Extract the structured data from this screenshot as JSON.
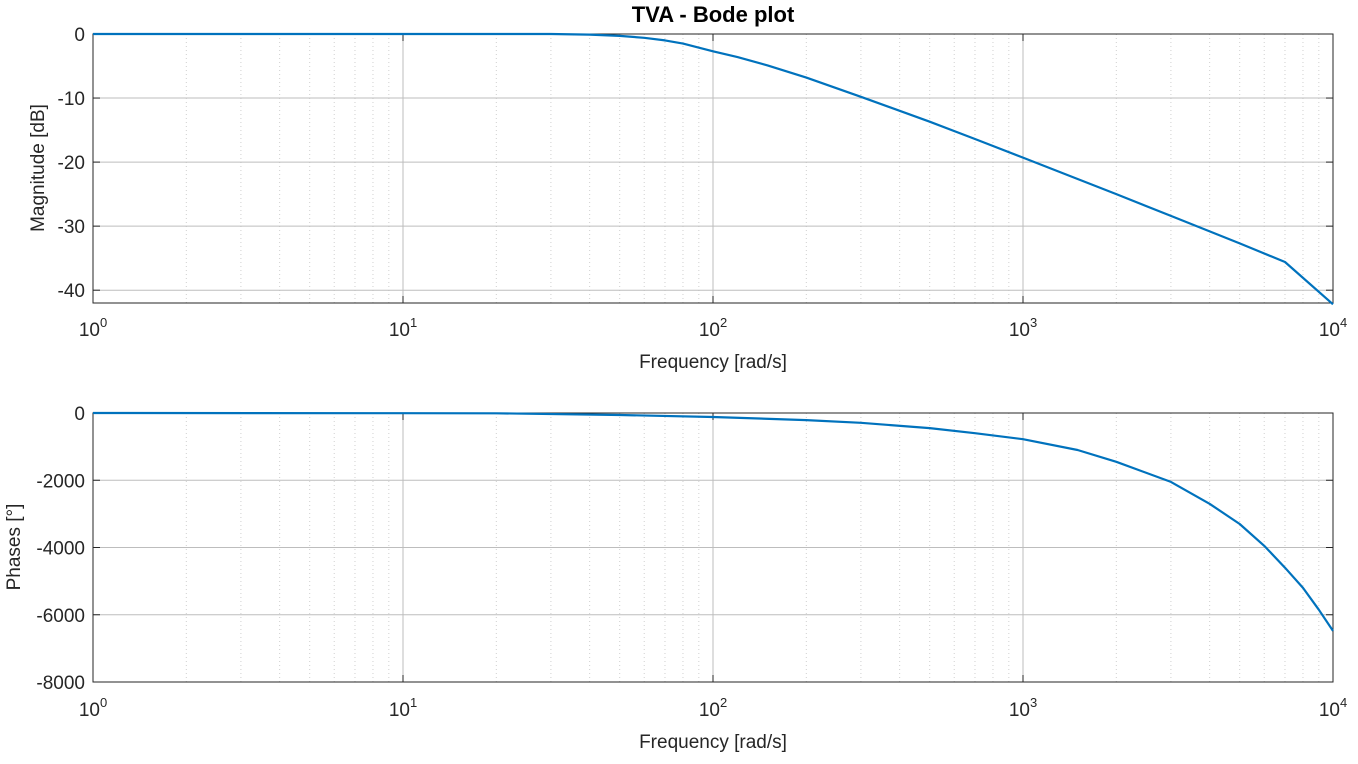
{
  "figure": {
    "title": "TVA - Bode plot",
    "line_color": "#0072BD"
  },
  "chart_data": [
    {
      "type": "line",
      "name": "magnitude",
      "xscale": "log",
      "xlim": [
        1,
        10000
      ],
      "ylim": [
        -42,
        0
      ],
      "grid": true,
      "xlabel": "Frequency [rad/s]",
      "ylabel": "Magnitude [dB]",
      "xticks": [
        {
          "base": "10",
          "exp": "0",
          "value": 1
        },
        {
          "base": "10",
          "exp": "1",
          "value": 10
        },
        {
          "base": "10",
          "exp": "2",
          "value": 100
        },
        {
          "base": "10",
          "exp": "3",
          "value": 1000
        },
        {
          "base": "10",
          "exp": "4",
          "value": 10000
        }
      ],
      "yticks": [
        0,
        -10,
        -20,
        -30,
        -40
      ],
      "series": [
        {
          "x": [
            1,
            10,
            20,
            30,
            40,
            50,
            60,
            70,
            80,
            100,
            120,
            150,
            200,
            300,
            500,
            700,
            1000,
            2000,
            3000,
            5000,
            7000,
            10000
          ],
          "y": [
            0,
            0,
            0,
            0,
            -0.1,
            -0.3,
            -0.6,
            -1.0,
            -1.5,
            -2.7,
            -3.6,
            -4.9,
            -6.8,
            -9.8,
            -13.7,
            -16.4,
            -19.3,
            -25.0,
            -28.4,
            -32.7,
            -35.6,
            -42.2
          ]
        }
      ]
    },
    {
      "type": "line",
      "name": "phase",
      "xscale": "log",
      "xlim": [
        1,
        10000
      ],
      "ylim": [
        -8000,
        0
      ],
      "grid": true,
      "xlabel": "Frequency [rad/s]",
      "ylabel": "Phases [°]",
      "xticks": [
        {
          "base": "10",
          "exp": "0",
          "value": 1
        },
        {
          "base": "10",
          "exp": "1",
          "value": 10
        },
        {
          "base": "10",
          "exp": "2",
          "value": 100
        },
        {
          "base": "10",
          "exp": "3",
          "value": 1000
        },
        {
          "base": "10",
          "exp": "4",
          "value": 10000
        }
      ],
      "yticks": [
        0,
        -2000,
        -4000,
        -6000,
        -8000
      ],
      "series": [
        {
          "x": [
            1,
            10,
            20,
            50,
            100,
            200,
            300,
            500,
            700,
            1000,
            1500,
            2000,
            3000,
            4000,
            5000,
            6000,
            7000,
            8000,
            9000,
            10000
          ],
          "y": [
            0,
            -5,
            -10,
            -60,
            -120,
            -210,
            -290,
            -450,
            -600,
            -780,
            -1100,
            -1450,
            -2050,
            -2700,
            -3300,
            -3950,
            -4600,
            -5200,
            -5850,
            -6480
          ]
        }
      ]
    }
  ]
}
